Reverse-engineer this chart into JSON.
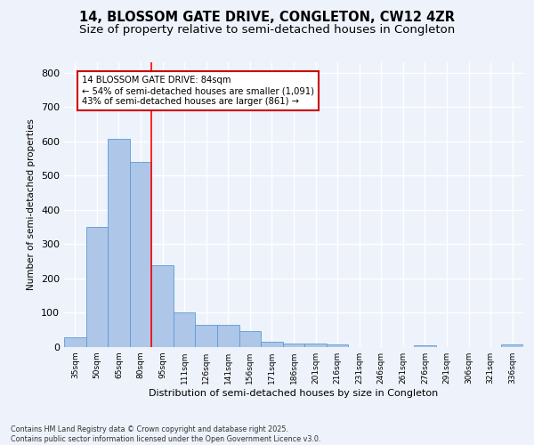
{
  "title1": "14, BLOSSOM GATE DRIVE, CONGLETON, CW12 4ZR",
  "title2": "Size of property relative to semi-detached houses in Congleton",
  "xlabel": "Distribution of semi-detached houses by size in Congleton",
  "ylabel": "Number of semi-detached properties",
  "categories": [
    "35sqm",
    "50sqm",
    "65sqm",
    "80sqm",
    "95sqm",
    "111sqm",
    "126sqm",
    "141sqm",
    "156sqm",
    "171sqm",
    "186sqm",
    "201sqm",
    "216sqm",
    "231sqm",
    "246sqm",
    "261sqm",
    "276sqm",
    "291sqm",
    "306sqm",
    "321sqm",
    "336sqm"
  ],
  "values": [
    28,
    350,
    607,
    540,
    238,
    102,
    65,
    65,
    47,
    15,
    10,
    10,
    8,
    0,
    0,
    0,
    5,
    0,
    0,
    0,
    8
  ],
  "bar_color": "#aec6e8",
  "bar_edge_color": "#5b9bd5",
  "bar_width": 1.0,
  "red_line_x": 3.5,
  "annotation_title": "14 BLOSSOM GATE DRIVE: 84sqm",
  "annotation_line1": "← 54% of semi-detached houses are smaller (1,091)",
  "annotation_line2": "43% of semi-detached houses are larger (861) →",
  "annotation_box_color": "#ffffff",
  "annotation_box_edge": "#cc0000",
  "footnote1": "Contains HM Land Registry data © Crown copyright and database right 2025.",
  "footnote2": "Contains public sector information licensed under the Open Government Licence v3.0.",
  "ylim": [
    0,
    830
  ],
  "background_color": "#eef2fb",
  "grid_color": "#ffffff",
  "title_fontsize": 10.5,
  "subtitle_fontsize": 9.5
}
